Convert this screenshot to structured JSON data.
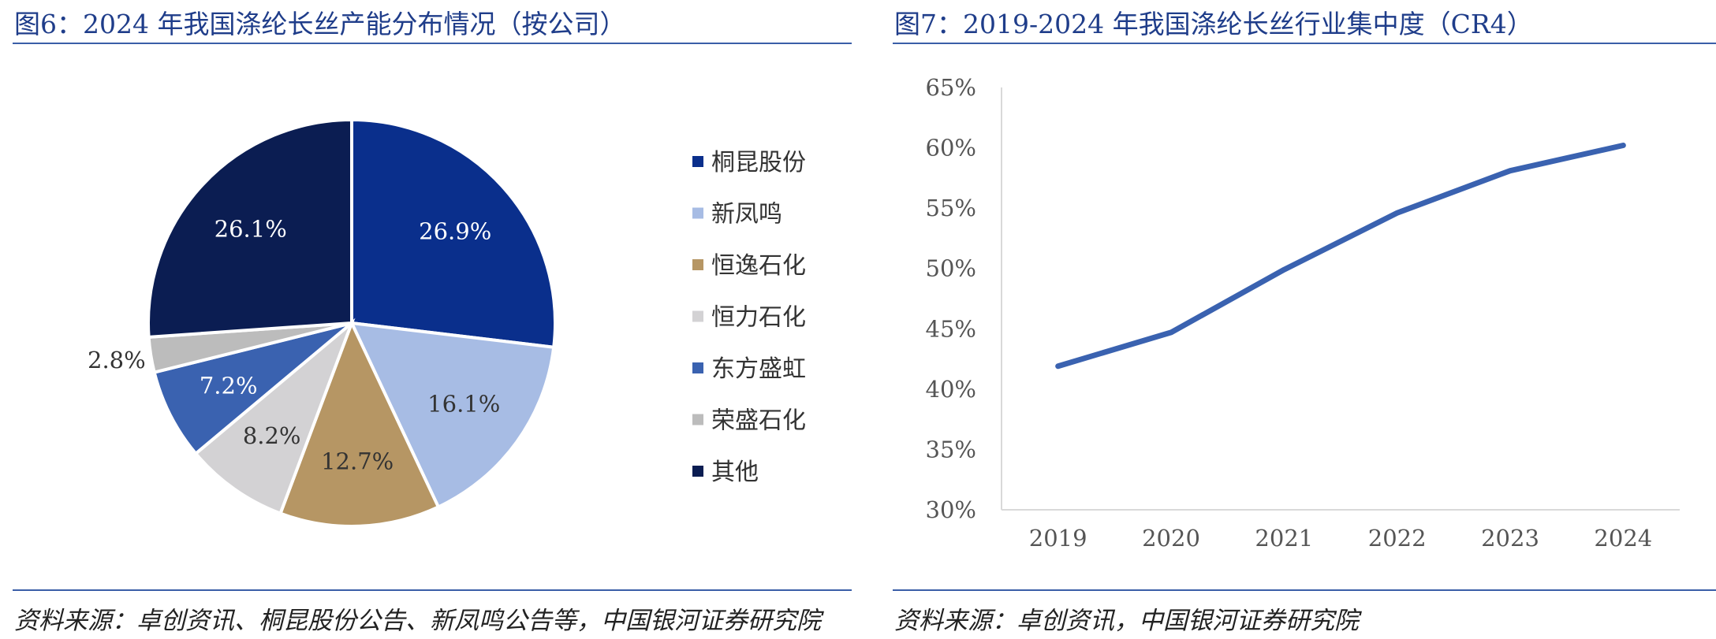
{
  "left": {
    "title": "图6：2024 年我国涤纶长丝产能分布情况（按公司）",
    "source": "资料来源：卓创资讯、桐昆股份公告、新凤鸣公告等，中国银河证券研究院",
    "chart_data": {
      "type": "pie",
      "title": "",
      "legend_position": "right",
      "slices": [
        {
          "name": "桐昆股份",
          "value": 26.9,
          "label": "26.9%",
          "color": "#0a2f8c"
        },
        {
          "name": "新凤鸣",
          "value": 16.1,
          "label": "16.1%",
          "color": "#a7bce4"
        },
        {
          "name": "恒逸石化",
          "value": 12.7,
          "label": "12.7%",
          "color": "#b69664"
        },
        {
          "name": "恒力石化",
          "value": 8.2,
          "label": "8.2%",
          "color": "#d3d2d4"
        },
        {
          "name": "东方盛虹",
          "value": 7.2,
          "label": "7.2%",
          "color": "#3a62b0"
        },
        {
          "name": "荣盛石化",
          "value": 2.8,
          "label": "2.8%",
          "color": "#bcbcbc"
        },
        {
          "name": "其他",
          "value": 26.1,
          "label": "26.1%",
          "color": "#0b1d52"
        }
      ]
    }
  },
  "right": {
    "title": "图7：2019-2024 年我国涤纶长丝行业集中度（CR4）",
    "source": "资料来源：卓创资讯，中国银河证券研究院",
    "chart_data": {
      "type": "line",
      "title": "",
      "xlabel": "",
      "ylabel": "",
      "categories": [
        "2019",
        "2020",
        "2021",
        "2022",
        "2023",
        "2024"
      ],
      "series": [
        {
          "values": [
            41.9,
            44.7,
            49.9,
            54.6,
            58.1,
            60.2
          ],
          "color": "#3a62b0"
        }
      ],
      "ylim": [
        30,
        65
      ],
      "yticks": [
        "30%",
        "35%",
        "40%",
        "45%",
        "50%",
        "55%",
        "60%",
        "65%"
      ],
      "grid": false
    }
  }
}
